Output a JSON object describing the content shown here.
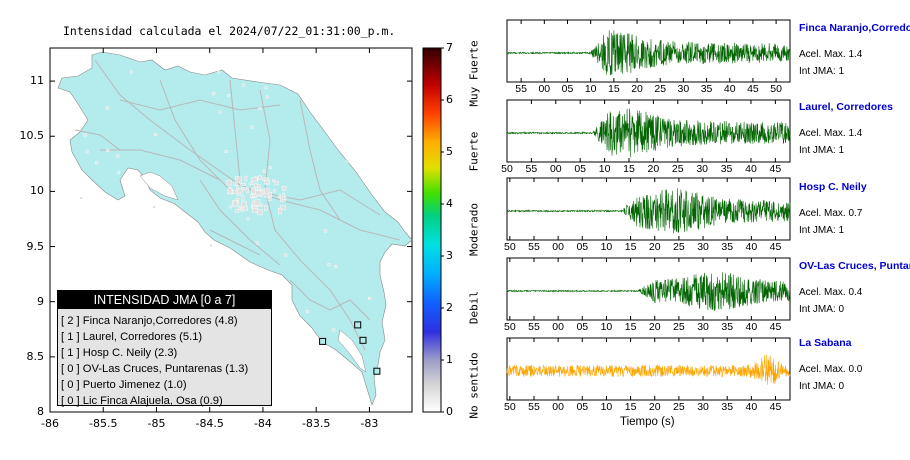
{
  "title": "Intensidad calculada el 2024/07/22_01:31:00_p.m.",
  "map": {
    "xlim": [
      -86,
      -82.6
    ],
    "ylim": [
      8,
      11.3
    ],
    "x_ticks": [
      "-86",
      "-85.5",
      "-85",
      "-84.5",
      "-84",
      "-83.5",
      "-83"
    ],
    "y_ticks": [
      "8",
      "8.5",
      "9",
      "9.5",
      "10",
      "10.5",
      "11"
    ],
    "land_color": "#b4ecee",
    "station_markers": [
      {
        "lon": -82.93,
        "lat": 8.37
      },
      {
        "lon": -83.06,
        "lat": 8.65
      },
      {
        "lon": -83.44,
        "lat": 8.64
      },
      {
        "lon": -83.11,
        "lat": 8.79
      }
    ]
  },
  "colorbar": {
    "ticks": [
      "0",
      "1",
      "2",
      "3",
      "4",
      "5",
      "6",
      "7"
    ],
    "labels": [
      "No sentido",
      "Debil",
      "Moderado",
      "Fuerte",
      "Muy Fuerte"
    ]
  },
  "legend": {
    "header": "INTENSIDAD JMA [0 a 7]",
    "rows": [
      "[ 2 ]  Finca Naranjo,Corredores (4.8)",
      "[ 1 ]  Laurel, Corredores (5.1)",
      "[ 1 ]  Hosp C. Neily (2.3)",
      "[ 0 ]  OV-Las Cruces, Puntarenas (1.3)",
      "[ 0 ]  Puerto Jimenez (1.0)",
      "[ 0 ]  Lic Finca Alajuela, Osa (0.9)"
    ]
  },
  "waveforms": {
    "xlabel": "Tiempo (s)",
    "panels": [
      {
        "name": "Finca Naranjo,Corredores",
        "accel": "Acel. Max. 1.4",
        "jma": "Int JMA: 1",
        "color": "#006400",
        "onset": 0.29,
        "peak": 0.38,
        "amp": 0.85,
        "ticks": [
          "55",
          "00",
          "05",
          "10",
          "15",
          "20",
          "25",
          "30",
          "35",
          "40",
          "45",
          "50"
        ],
        "tick_start": 0.05
      },
      {
        "name": "Laurel, Corredores",
        "accel": "Acel. Max. 1.4",
        "jma": "Int JMA: 1",
        "color": "#006400",
        "onset": 0.3,
        "peak": 0.42,
        "amp": 0.95,
        "ticks": [
          "50",
          "55",
          "00",
          "05",
          "10",
          "15",
          "20",
          "25",
          "30",
          "35",
          "40",
          "45"
        ],
        "tick_start": 0.0
      },
      {
        "name": "Hosp C. Neily",
        "accel": "Acel. Max. 0.7",
        "jma": "Int JMA: 1",
        "color": "#006400",
        "onset": 0.4,
        "peak": 0.6,
        "amp": 0.9,
        "ticks": [
          "50",
          "55",
          "00",
          "05",
          "10",
          "15",
          "20",
          "25",
          "30",
          "35",
          "40",
          "45"
        ],
        "tick_start": 0.01
      },
      {
        "name": "OV-Las Cruces, Puntar",
        "accel": "Acel. Max. 0.4",
        "jma": "Int JMA: 0",
        "color": "#006400",
        "onset": 0.46,
        "peak": 0.75,
        "amp": 0.8,
        "ticks": [
          "50",
          "55",
          "00",
          "05",
          "10",
          "15",
          "20",
          "25",
          "30",
          "35",
          "40",
          "45"
        ],
        "tick_start": 0.01
      },
      {
        "name": "La Sabana",
        "accel": "Acel. Max. 0.0",
        "jma": "Int JMA: 0",
        "color": "#ffa500",
        "onset": 0.0,
        "peak": 0.92,
        "amp": 0.6,
        "noise": true,
        "ticks": [
          "50",
          "55",
          "00",
          "05",
          "10",
          "15",
          "20",
          "25",
          "30",
          "35",
          "40",
          "45"
        ],
        "tick_start": 0.01
      }
    ]
  }
}
